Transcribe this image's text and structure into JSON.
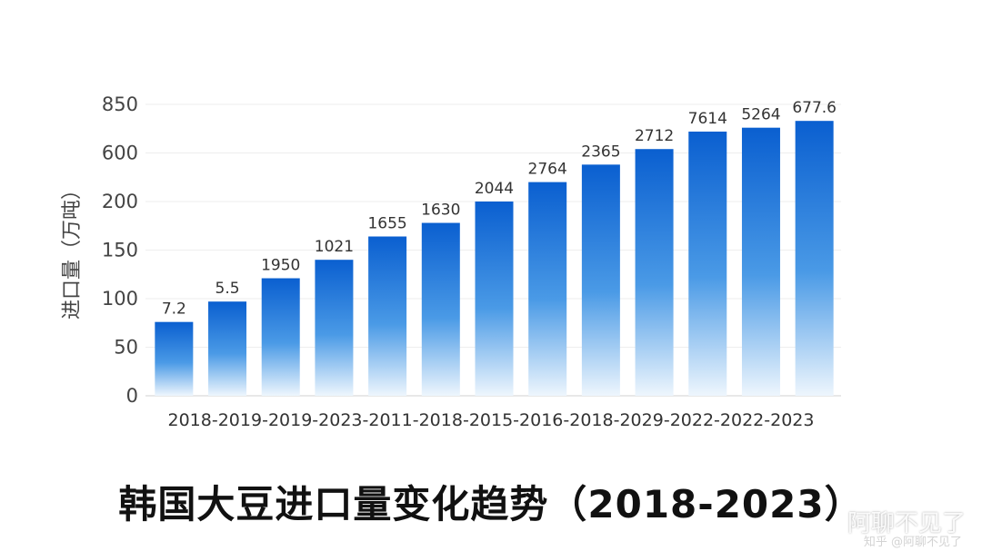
{
  "chart_data": {
    "type": "bar",
    "title": "韩国大豆进口量变化趋势（2018-2023）",
    "ylabel": "进口量（万吨）",
    "xlabel": "",
    "yticks": [
      "0",
      "50",
      "100",
      "150",
      "200",
      "600",
      "850"
    ],
    "categories": [
      "2018",
      "2019",
      "2019",
      "2023",
      "2011",
      "2018",
      "2015",
      "2016",
      "2018",
      "2029",
      "2022",
      "2022",
      "2023"
    ],
    "values": [
      76,
      97,
      121,
      140,
      164,
      178,
      200,
      220,
      238,
      254,
      272,
      276,
      283
    ],
    "data_labels": [
      "7.2",
      "5.5",
      "1950",
      "1021",
      "1655",
      "1630",
      "2044",
      "2764",
      "2365",
      "2712",
      "7614",
      "5264",
      "677.6"
    ],
    "grid": true,
    "colors": {
      "bar_top": "#0a5fd0",
      "bar_mid": "#4a9ae6",
      "bar_bottom": "#eef6fd"
    }
  },
  "watermark": "阿聊不见了",
  "watermark_sub": "知乎 @阿聊不见了"
}
